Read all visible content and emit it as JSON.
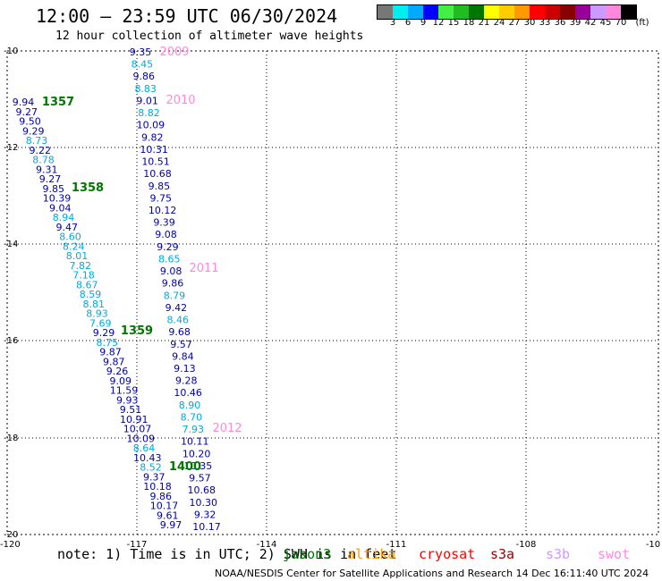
{
  "title": "12:00 – 23:59 UTC 06/30/2024",
  "subtitle": "12 hour collection of altimeter wave heights",
  "colorbar": {
    "colors": [
      "#777777",
      "#00eeee",
      "#00aaff",
      "#0000ff",
      "#44ee44",
      "#22bb22",
      "#007700",
      "#ffff00",
      "#ffcc00",
      "#ff9900",
      "#ff0000",
      "#cc0000",
      "#880000",
      "#990099",
      "#cc99ff",
      "#ff88dd",
      "#000000"
    ],
    "labels": [
      "3",
      "6",
      "9",
      "12",
      "15",
      "18",
      "21",
      "24",
      "27",
      "30",
      "33",
      "36",
      "39",
      "42",
      "45",
      "70"
    ],
    "unit": "(ft)"
  },
  "axes": {
    "lon_ticks": [
      "-120",
      "-117",
      "-114",
      "-111",
      "-108",
      "-10"
    ],
    "lat_ticks": [
      "-10",
      "-12",
      "-14",
      "-16",
      "-18",
      "-20"
    ]
  },
  "tracks": {
    "left": [
      {
        "v": "9.94",
        "c": "#0000aa"
      },
      {
        "v": "9.27",
        "c": "#0000aa"
      },
      {
        "v": "9.50",
        "c": "#0000aa"
      },
      {
        "v": "9.29",
        "c": "#0000aa"
      },
      {
        "v": "8.73",
        "c": "#00aadd"
      },
      {
        "v": "9.22",
        "c": "#0000aa"
      },
      {
        "v": "8.78",
        "c": "#00aadd"
      },
      {
        "v": "9.31",
        "c": "#0000aa"
      },
      {
        "v": "9.27",
        "c": "#0000aa"
      },
      {
        "v": "9.85",
        "c": "#0000aa"
      },
      {
        "v": "10.39",
        "c": "#0000aa"
      },
      {
        "v": "9.04",
        "c": "#0000aa"
      },
      {
        "v": "8.94",
        "c": "#00aadd"
      },
      {
        "v": "9.47",
        "c": "#0000aa"
      },
      {
        "v": "8.60",
        "c": "#00aadd"
      },
      {
        "v": "8.24",
        "c": "#00aadd"
      },
      {
        "v": "8.01",
        "c": "#00aadd"
      },
      {
        "v": "7.82",
        "c": "#00aadd"
      },
      {
        "v": "7.18",
        "c": "#00aadd"
      },
      {
        "v": "8.67",
        "c": "#00aadd"
      },
      {
        "v": "8.59",
        "c": "#00aadd"
      },
      {
        "v": "8.81",
        "c": "#00aadd"
      },
      {
        "v": "8.93",
        "c": "#00aadd"
      },
      {
        "v": "7.69",
        "c": "#00aadd"
      },
      {
        "v": "9.29",
        "c": "#0000aa"
      },
      {
        "v": "8.75",
        "c": "#00aadd"
      },
      {
        "v": "9.87",
        "c": "#0000aa"
      },
      {
        "v": "9.87",
        "c": "#0000aa"
      },
      {
        "v": "9.26",
        "c": "#0000aa"
      },
      {
        "v": "9.09",
        "c": "#0000aa"
      },
      {
        "v": "11.59",
        "c": "#0000aa"
      },
      {
        "v": "9.93",
        "c": "#0000aa"
      },
      {
        "v": "9.51",
        "c": "#0000aa"
      },
      {
        "v": "10.91",
        "c": "#0000aa"
      },
      {
        "v": "10.07",
        "c": "#0000aa"
      },
      {
        "v": "10.09",
        "c": "#0000aa"
      },
      {
        "v": "8.64",
        "c": "#00aadd"
      },
      {
        "v": "10.43",
        "c": "#0000aa"
      },
      {
        "v": "8.52",
        "c": "#00aadd"
      },
      {
        "v": "9.37",
        "c": "#0000aa"
      },
      {
        "v": "10.18",
        "c": "#0000aa"
      },
      {
        "v": "9.86",
        "c": "#0000aa"
      },
      {
        "v": "10.17",
        "c": "#0000aa"
      },
      {
        "v": "9.61",
        "c": "#0000aa"
      },
      {
        "v": "9.97",
        "c": "#0000aa"
      }
    ],
    "right": [
      {
        "v": "9.35",
        "c": "#0000aa"
      },
      {
        "v": "8.45",
        "c": "#00aadd"
      },
      {
        "v": "9.86",
        "c": "#0000aa"
      },
      {
        "v": "8.83",
        "c": "#00aadd"
      },
      {
        "v": "9.01",
        "c": "#0000aa"
      },
      {
        "v": "8.82",
        "c": "#00aadd"
      },
      {
        "v": "10.09",
        "c": "#0000aa"
      },
      {
        "v": "9.82",
        "c": "#0000aa"
      },
      {
        "v": "10.31",
        "c": "#0000aa"
      },
      {
        "v": "10.51",
        "c": "#0000aa"
      },
      {
        "v": "10.68",
        "c": "#0000aa"
      },
      {
        "v": "9.85",
        "c": "#0000aa"
      },
      {
        "v": "9.75",
        "c": "#0000aa"
      },
      {
        "v": "10.12",
        "c": "#0000aa"
      },
      {
        "v": "9.39",
        "c": "#0000aa"
      },
      {
        "v": "9.08",
        "c": "#0000aa"
      },
      {
        "v": "9.29",
        "c": "#0000aa"
      },
      {
        "v": "8.65",
        "c": "#00aadd"
      },
      {
        "v": "9.08",
        "c": "#0000aa"
      },
      {
        "v": "9.86",
        "c": "#0000aa"
      },
      {
        "v": "8.79",
        "c": "#00aadd"
      },
      {
        "v": "9.42",
        "c": "#0000aa"
      },
      {
        "v": "8.46",
        "c": "#00aadd"
      },
      {
        "v": "9.68",
        "c": "#0000aa"
      },
      {
        "v": "9.57",
        "c": "#0000aa"
      },
      {
        "v": "9.84",
        "c": "#0000aa"
      },
      {
        "v": "9.13",
        "c": "#0000aa"
      },
      {
        "v": "9.28",
        "c": "#0000aa"
      },
      {
        "v": "10.46",
        "c": "#0000aa"
      },
      {
        "v": "8.90",
        "c": "#00aadd"
      },
      {
        "v": "8.70",
        "c": "#00aadd"
      },
      {
        "v": "7.93",
        "c": "#00aadd"
      },
      {
        "v": "10.11",
        "c": "#0000aa"
      },
      {
        "v": "10.20",
        "c": "#0000aa"
      },
      {
        "v": "10.35",
        "c": "#0000aa"
      },
      {
        "v": "9.57",
        "c": "#0000aa"
      },
      {
        "v": "10.68",
        "c": "#0000aa"
      },
      {
        "v": "10.30",
        "c": "#0000aa"
      },
      {
        "v": "9.32",
        "c": "#0000aa"
      },
      {
        "v": "10.17",
        "c": "#0000aa"
      }
    ]
  },
  "time_labels": [
    {
      "t": "2009",
      "c": "#ff88dd"
    },
    {
      "t": "2010",
      "c": "#ff88dd"
    },
    {
      "t": "2011",
      "c": "#ff88dd"
    },
    {
      "t": "2012",
      "c": "#ff88dd"
    },
    {
      "t": "1357",
      "c": "#007700"
    },
    {
      "t": "1358",
      "c": "#007700"
    },
    {
      "t": "1359",
      "c": "#007700"
    },
    {
      "t": "1400",
      "c": "#007700"
    }
  ],
  "note": {
    "text": "note: 1) Time is in UTC; 2) SWH is in feet",
    "satellites": [
      {
        "name": "jason3",
        "color": "#007700"
      },
      {
        "name": "altika",
        "color": "#ff9900"
      },
      {
        "name": "cryosat",
        "color": "#ff0000"
      },
      {
        "name": "s3a",
        "color": "#990000"
      },
      {
        "name": "s3b",
        "color": "#cc99ff"
      },
      {
        "name": "swot",
        "color": "#ff88dd"
      }
    ]
  },
  "footer": "NOAA/NESDIS Center for Satellite Applications and Research   14 Dec 16:11:40 UTC 2024"
}
